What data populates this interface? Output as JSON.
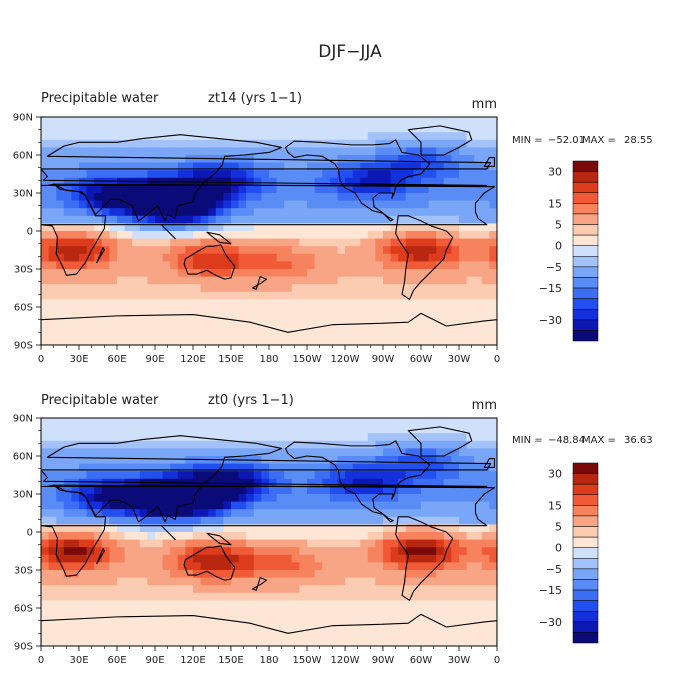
{
  "figure": {
    "title": "DJF−JJA"
  },
  "colors": {
    "levels": [
      -35,
      -30,
      -25,
      -20,
      -15,
      -10,
      -5,
      -2.5,
      0,
      2.5,
      5,
      10,
      15,
      20,
      25,
      30,
      35
    ],
    "fills": [
      "#0a0a78",
      "#0d18b4",
      "#1430dc",
      "#2250f0",
      "#3c6ef5",
      "#5a8cf5",
      "#7aa6f7",
      "#a4c2fa",
      "#cfe0fb",
      "#fde6d6",
      "#fbccb2",
      "#f8a585",
      "#f6825e",
      "#f05a36",
      "#dc3c1c",
      "#b82810",
      "#7a0a0a"
    ]
  },
  "colorbar": {
    "tick_labels": [
      {
        "level": 30,
        "text": "30"
      },
      {
        "level": 15,
        "text": "15"
      },
      {
        "level": 5,
        "text": "5"
      },
      {
        "level": 0,
        "text": "0"
      },
      {
        "level": -5,
        "text": "−5"
      },
      {
        "level": -15,
        "text": "−15"
      },
      {
        "level": -30,
        "text": "−30"
      }
    ]
  },
  "chart_data": [
    {
      "type": "heatmap",
      "title": "Precipitable water",
      "subtitle": "zt14 (yrs 1−1)",
      "units": "mm",
      "stats": {
        "min_label": "MIN =",
        "min": "−52.01",
        "max_label": "MAX =",
        "max": "28.55"
      },
      "x_ticks": [
        "0",
        "30E",
        "60E",
        "90E",
        "120E",
        "150E",
        "180",
        "150W",
        "120W",
        "90W",
        "60W",
        "30W",
        "0"
      ],
      "y_ticks": [
        "90N",
        "60N",
        "30N",
        "0",
        "30S",
        "60S",
        "90S"
      ],
      "xlim": [
        0,
        360
      ],
      "ylim": [
        -90,
        90
      ],
      "field_features": [
        {
          "lon": 95,
          "lat": 25,
          "value": -40
        },
        {
          "lon": 110,
          "lat": 20,
          "value": -35
        },
        {
          "lon": 55,
          "lat": 28,
          "value": -25
        },
        {
          "lon": 140,
          "lat": 40,
          "value": -25
        },
        {
          "lon": 260,
          "lat": 40,
          "value": -20
        },
        {
          "lon": 300,
          "lat": 55,
          "value": -15
        },
        {
          "lon": 25,
          "lat": -15,
          "value": 25
        },
        {
          "lon": 135,
          "lat": -22,
          "value": 20
        },
        {
          "lon": 300,
          "lat": -15,
          "value": 25
        },
        {
          "lon": 190,
          "lat": -25,
          "value": 10
        }
      ]
    },
    {
      "type": "heatmap",
      "title": "Precipitable water",
      "subtitle": "zt0 (yrs 1−1)",
      "units": "mm",
      "stats": {
        "min_label": "MIN =",
        "min": "−48.84",
        "max_label": "MAX =",
        "max": "36.63"
      },
      "x_ticks": [
        "0",
        "30E",
        "60E",
        "90E",
        "120E",
        "150E",
        "180",
        "150W",
        "120W",
        "90W",
        "60W",
        "30W",
        "0"
      ],
      "y_ticks": [
        "90N",
        "60N",
        "30N",
        "0",
        "30S",
        "60S",
        "90S"
      ],
      "xlim": [
        0,
        360
      ],
      "ylim": [
        -90,
        90
      ],
      "field_features": [
        {
          "lon": 100,
          "lat": 25,
          "value": -40
        },
        {
          "lon": 120,
          "lat": 30,
          "value": -38
        },
        {
          "lon": 55,
          "lat": 28,
          "value": -25
        },
        {
          "lon": 150,
          "lat": 40,
          "value": -25
        },
        {
          "lon": 255,
          "lat": 40,
          "value": -20
        },
        {
          "lon": 300,
          "lat": 55,
          "value": -15
        },
        {
          "lon": 25,
          "lat": -15,
          "value": 28
        },
        {
          "lon": 135,
          "lat": -22,
          "value": 25
        },
        {
          "lon": 300,
          "lat": -15,
          "value": 30
        },
        {
          "lon": 190,
          "lat": -25,
          "value": 12
        }
      ]
    }
  ]
}
